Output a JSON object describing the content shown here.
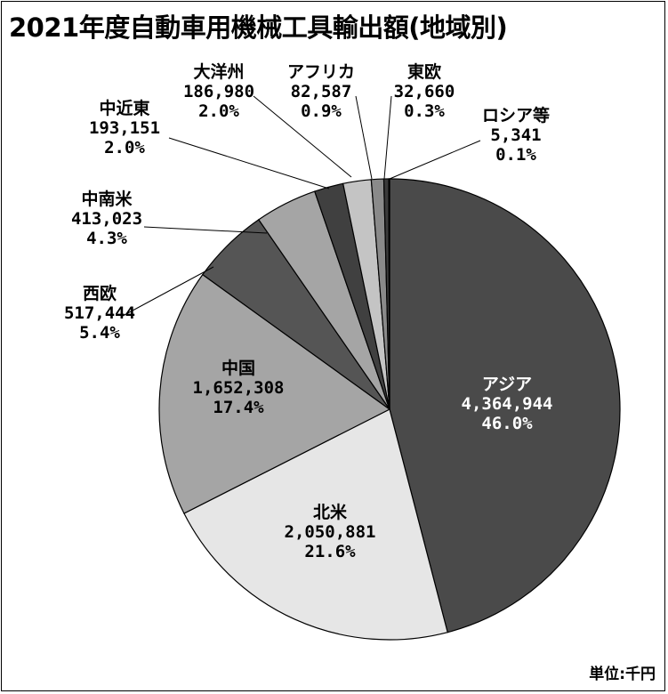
{
  "title": "2021年度自動車用機械工具輸出額(地域別)",
  "unit_label": "単位",
  "unit_sep": ":",
  "unit_value": "千円",
  "colors": {
    "dark": "#4a4a4a",
    "light": "#e6e6e6",
    "mid": "#a5a5a5",
    "darker": "#555555",
    "line": "#000000"
  },
  "chart_data": {
    "type": "pie",
    "title": "2021年度自動車用機械工具輸出額(地域別)",
    "unit": "千円",
    "slices": [
      {
        "label": "アジア",
        "value": 4364944,
        "value_text": "4,364,944",
        "percent": 46.0,
        "percent_text": "46.0%",
        "color": "#4a4a4a"
      },
      {
        "label": "北米",
        "value": 2050881,
        "value_text": "2,050,881",
        "percent": 21.6,
        "percent_text": "21.6%",
        "color": "#e6e6e6"
      },
      {
        "label": "中国",
        "value": 1652308,
        "value_text": "1,652,308",
        "percent": 17.4,
        "percent_text": "17.4%",
        "color": "#a5a5a5"
      },
      {
        "label": "西欧",
        "value": 517444,
        "value_text": "517,444",
        "percent": 5.4,
        "percent_text": "5.4%",
        "color": "#555555"
      },
      {
        "label": "中南米",
        "value": 413023,
        "value_text": "413,023",
        "percent": 4.3,
        "percent_text": "4.3%",
        "color": "#a5a5a5"
      },
      {
        "label": "中近東",
        "value": 193151,
        "value_text": "193,151",
        "percent": 2.0,
        "percent_text": "2.0%",
        "color": "#404040"
      },
      {
        "label": "大洋州",
        "value": 186980,
        "value_text": "186,980",
        "percent": 2.0,
        "percent_text": "2.0%",
        "color": "#c4c4c4"
      },
      {
        "label": "アフリカ",
        "value": 82587,
        "value_text": "82,587",
        "percent": 0.9,
        "percent_text": "0.9%",
        "color": "#8a8a8a"
      },
      {
        "label": "東欧",
        "value": 32660,
        "value_text": "32,660",
        "percent": 0.3,
        "percent_text": "0.3%",
        "color": "#3a3a3a"
      },
      {
        "label": "ロシア等",
        "value": 5341,
        "value_text": "5,341",
        "percent": 0.1,
        "percent_text": "0.1%",
        "color": "#ffffff"
      }
    ]
  }
}
